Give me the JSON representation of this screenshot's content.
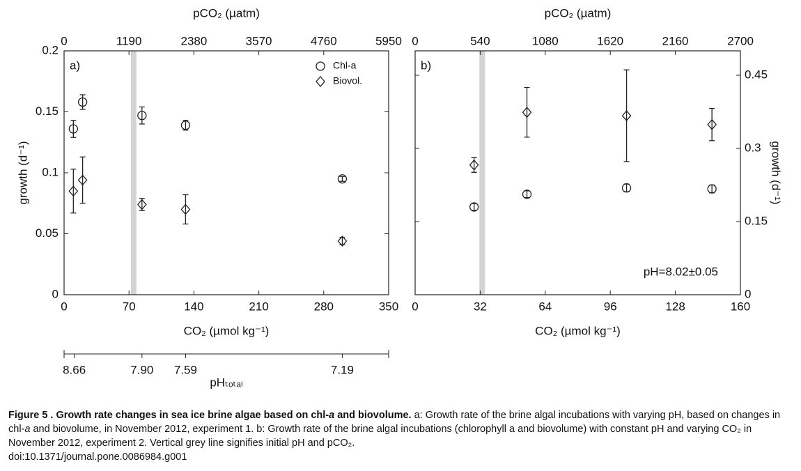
{
  "chart_data": [
    {
      "type": "scatter",
      "panel_label": "a)",
      "xlabel": "CO₂ (µmol kg⁻¹)",
      "xlim": [
        0,
        350
      ],
      "xticks": [
        0,
        70,
        140,
        210,
        280,
        350
      ],
      "x2label": "pCO₂ (µatm)",
      "x2lim": [
        0,
        5950
      ],
      "x2ticks": [
        0,
        1190,
        2380,
        3570,
        4760,
        5950
      ],
      "x3label": "pHₜₒₜₐₗ",
      "x3lim": [
        0,
        350
      ],
      "x3ticks": [
        {
          "value": 11,
          "label": "8.66"
        },
        {
          "value": 84,
          "label": "7.90"
        },
        {
          "value": 131,
          "label": "7.59"
        },
        {
          "value": 300,
          "label": "7.19"
        }
      ],
      "ylabel": "growth (d⁻¹)",
      "ylim": [
        0,
        0.2
      ],
      "yticks": [
        0,
        0.05,
        0.1,
        0.15,
        0.2
      ],
      "y_axis_side": "left",
      "reference_line_x": 75,
      "reference_line_color": "#d3d3d3",
      "legend": "upper right",
      "series": [
        {
          "name": "Chl-a",
          "marker": "circle",
          "color": "#222222",
          "x": [
            10,
            20,
            84,
            131,
            300
          ],
          "values": [
            0.136,
            0.158,
            0.147,
            0.139,
            0.095
          ],
          "errors": [
            0.007,
            0.006,
            0.007,
            0.004,
            0.002
          ]
        },
        {
          "name": "Biovol.",
          "marker": "diamond",
          "color": "#222222",
          "x": [
            10,
            20,
            84,
            131,
            300
          ],
          "values": [
            0.085,
            0.094,
            0.074,
            0.07,
            0.044
          ],
          "errors": [
            0.018,
            0.019,
            0.005,
            0.012,
            0.003
          ]
        }
      ]
    },
    {
      "type": "scatter",
      "panel_label": "b)",
      "xlabel": "CO₂ (µmol kg⁻¹)",
      "xlim": [
        0,
        160
      ],
      "xticks": [
        0,
        32,
        64,
        96,
        128,
        160
      ],
      "x2label": "pCO₂ (µatm)",
      "x2lim": [
        0,
        2700
      ],
      "x2ticks": [
        0,
        540,
        1080,
        1620,
        2160,
        2700
      ],
      "ylabel": "growth (d⁻¹)",
      "ylim": [
        0,
        0.5
      ],
      "yticks": [
        0,
        0.15,
        0.3,
        0.45
      ],
      "y_axis_side": "right",
      "reference_line_x": 33,
      "reference_line_color": "#d3d3d3",
      "annotation": "pH=8.02±0.05",
      "series": [
        {
          "marker": "circle",
          "color": "#222222",
          "x": [
            29,
            55,
            104,
            146
          ],
          "values": [
            0.18,
            0.206,
            0.219,
            0.217
          ],
          "errors": [
            0.007,
            0.007,
            0.008,
            0.008
          ]
        },
        {
          "marker": "diamond",
          "color": "#222222",
          "x": [
            29,
            55,
            104,
            146
          ],
          "values": [
            0.266,
            0.374,
            0.367,
            0.349
          ],
          "errors": [
            0.015,
            0.051,
            0.094,
            0.033
          ]
        }
      ]
    }
  ],
  "caption": {
    "segments": [
      "Figure 5 . Growth rate changes in sea ice brine algae based on chl-",
      "a",
      " and biovolume.",
      " a: Growth rate of the brine algal incubations with varying pH, based on changes in chl-",
      "a",
      " and biovolume, in November 2012, experiment 1. b: Growth rate of the brine algal incubations (chlorophyll a and biovolume) with constant pH and varying CO₂ in November 2012, experiment 2. Vertical grey line signifies initial pH and pCO₂.",
      "doi:10.1371/journal.pone.0086984.g001"
    ]
  }
}
